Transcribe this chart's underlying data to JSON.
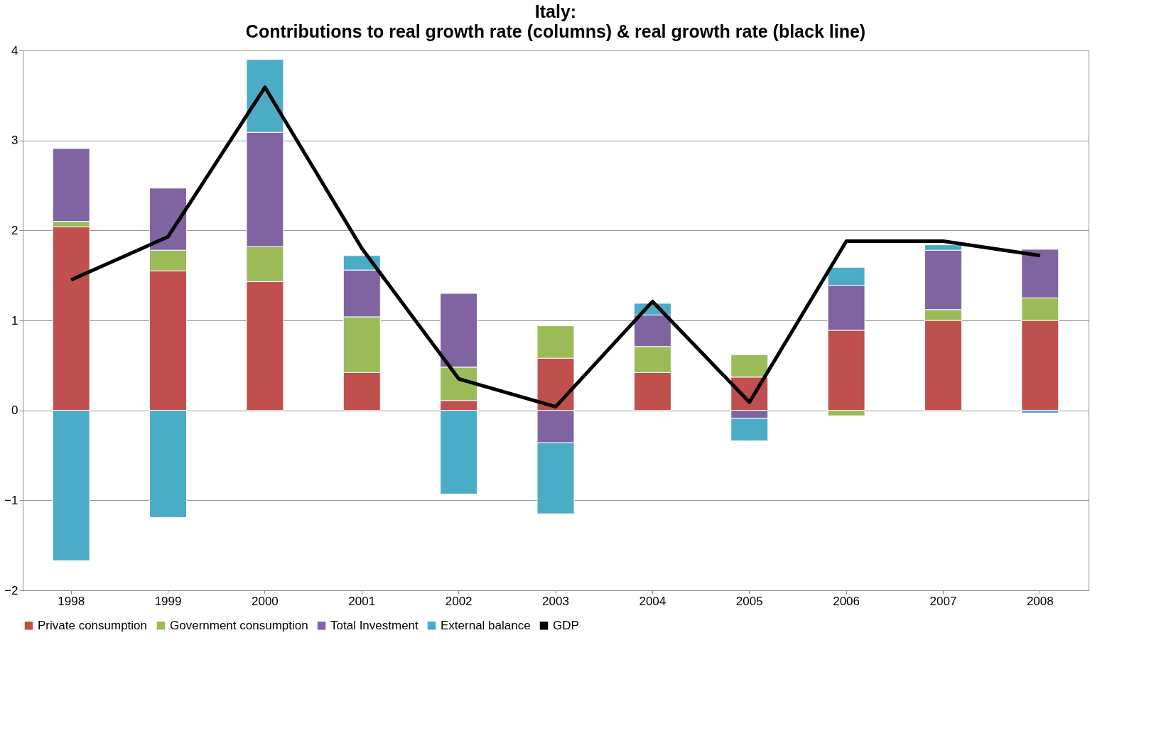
{
  "chart_data": {
    "type": "bar",
    "stacked": true,
    "title": "Italy:",
    "subtitle": "Contributions to real growth rate (columns) & real growth rate (black line)",
    "categories": [
      "1998",
      "1999",
      "2000",
      "2001",
      "2002",
      "2003",
      "2004",
      "2005",
      "2006",
      "2007",
      "2008"
    ],
    "series": [
      {
        "name": "Private consumption",
        "color": "#c0504d",
        "values": [
          2.04,
          1.55,
          1.43,
          0.42,
          0.11,
          0.58,
          0.42,
          0.37,
          0.89,
          1.0,
          1.0
        ]
      },
      {
        "name": "Government consumption",
        "color": "#9bbb59",
        "values": [
          0.06,
          0.23,
          0.39,
          0.62,
          0.37,
          0.36,
          0.29,
          0.25,
          -0.06,
          0.12,
          0.25
        ]
      },
      {
        "name": "Total Investment",
        "color": "#8064a2",
        "values": [
          0.81,
          0.69,
          1.27,
          0.52,
          0.82,
          -0.36,
          0.35,
          -0.09,
          0.5,
          0.66,
          0.54
        ]
      },
      {
        "name": "External balance",
        "color": "#4bacc6",
        "values": [
          -1.67,
          -1.19,
          0.81,
          0.16,
          -0.93,
          -0.79,
          0.13,
          -0.25,
          0.2,
          0.06,
          -0.03
        ]
      },
      {
        "name": "GDP",
        "color": "#000000",
        "type": "line",
        "values": [
          1.45,
          1.93,
          3.59,
          1.8,
          0.35,
          0.04,
          1.21,
          0.09,
          1.88,
          1.88,
          1.72
        ]
      }
    ],
    "ylim": [
      -2,
      4
    ],
    "yticks": [
      -2,
      -1,
      0,
      1,
      2,
      3,
      4
    ],
    "grid": "y",
    "legend": "bottom"
  }
}
